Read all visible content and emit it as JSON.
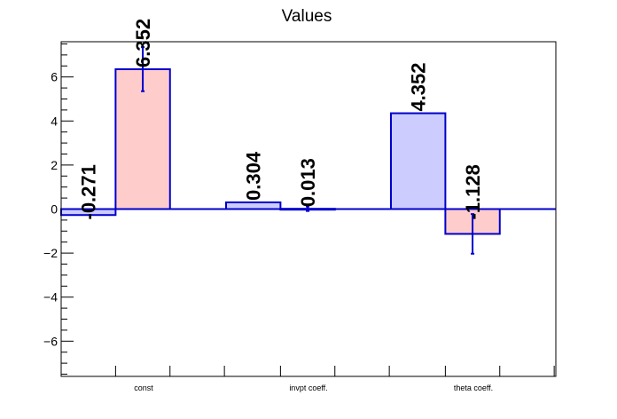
{
  "chart_data": {
    "type": "bar",
    "title": "Values",
    "categories": [
      "const",
      "invpt coeff.",
      "theta coeff."
    ],
    "ylim": [
      -7.6,
      7.6
    ],
    "yticks": [
      -6,
      -4,
      -2,
      0,
      2,
      4,
      6
    ],
    "ytick_labels": [
      "−6",
      "−4",
      "−2",
      "0",
      "2",
      "4",
      "6"
    ],
    "grid": false,
    "legend": "none",
    "series": [
      {
        "values": [
          -0.271,
          0.304,
          4.352
        ],
        "labels": [
          "-0.271",
          "0.304",
          "4.352"
        ],
        "errors": [
          0.0,
          0.0,
          0.0
        ],
        "color": "#ccccff"
      },
      {
        "values": [
          6.352,
          0.013,
          -1.128
        ],
        "labels": [
          "6.352",
          "0.013",
          "-1.128"
        ],
        "errors": [
          1.0,
          0.1,
          0.9
        ],
        "color": "#ffcccc"
      }
    ],
    "colors": {
      "outline": "#0000cc",
      "frame": "#000000",
      "zero_line": "#0000cc"
    }
  }
}
